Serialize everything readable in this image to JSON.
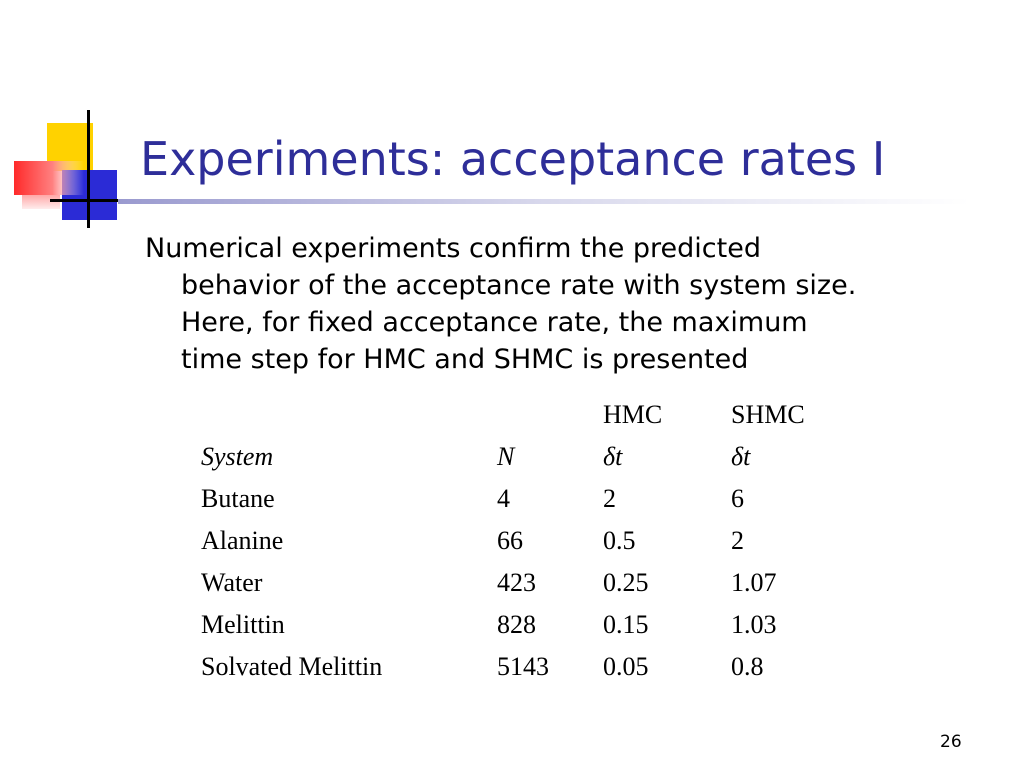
{
  "slide": {
    "title": "Experiments: acceptance rates I",
    "body_lines": [
      "Numerical experiments confirm the predicted",
      "behavior of the acceptance rate with system size.",
      "Here, for fixed acceptance rate, the maximum",
      "time step for HMC and SHMC is presented"
    ],
    "page_number": "26"
  },
  "table": {
    "header_row": [
      "",
      "",
      "HMC",
      "SHMC"
    ],
    "subheader_row": [
      "System",
      "N",
      "δt",
      "δt"
    ],
    "rows": [
      [
        "Butane",
        "4",
        "2",
        "6"
      ],
      [
        "Alanine",
        "66",
        "0.5",
        "2"
      ],
      [
        "Water",
        "423",
        "0.25",
        "1.07"
      ],
      [
        "Melittin",
        "828",
        "0.15",
        "1.03"
      ],
      [
        "Solvated Melittin",
        "5143",
        "0.05",
        "0.8"
      ]
    ]
  },
  "colors": {
    "title": "#2e2e99",
    "deco_yellow": "#ffd200",
    "deco_blue": "#2b2bd6",
    "deco_red": "#ff3c3c"
  }
}
